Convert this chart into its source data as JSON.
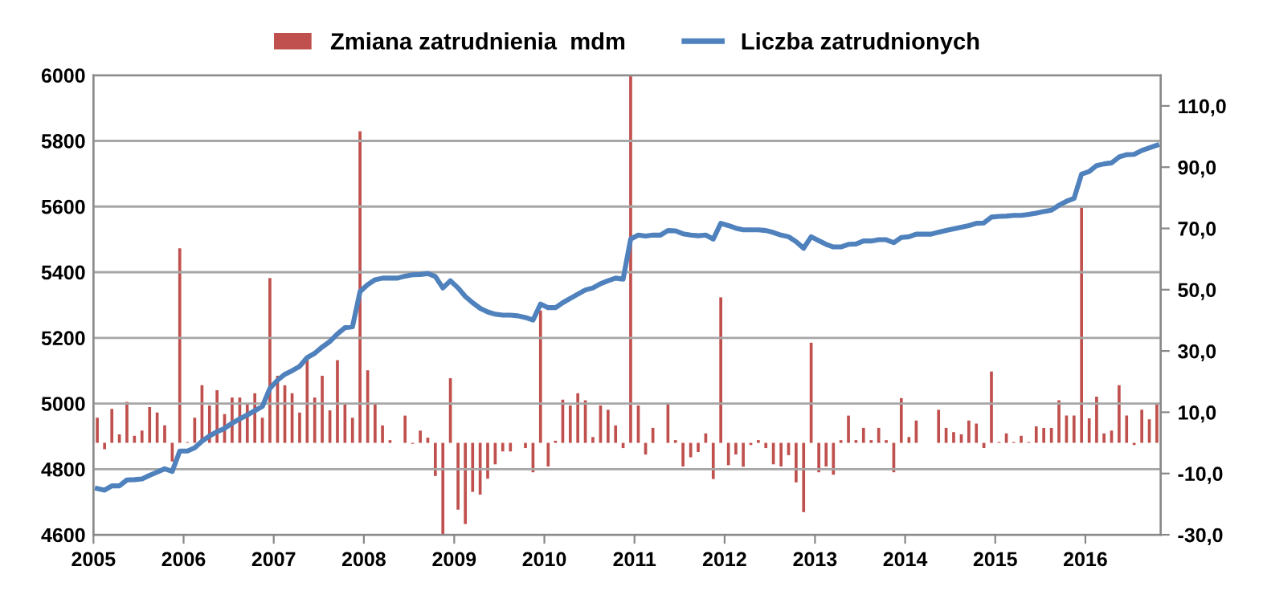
{
  "chart_data": {
    "type": "bar",
    "x": [
      "2005-01",
      "2005-02",
      "2005-03",
      "2005-04",
      "2005-05",
      "2005-06",
      "2005-07",
      "2005-08",
      "2005-09",
      "2005-10",
      "2005-11",
      "2005-12",
      "2006-01",
      "2006-02",
      "2006-03",
      "2006-04",
      "2006-05",
      "2006-06",
      "2006-07",
      "2006-08",
      "2006-09",
      "2006-10",
      "2006-11",
      "2006-12",
      "2007-01",
      "2007-02",
      "2007-03",
      "2007-04",
      "2007-05",
      "2007-06",
      "2007-07",
      "2007-08",
      "2007-09",
      "2007-10",
      "2007-11",
      "2007-12",
      "2008-01",
      "2008-02",
      "2008-03",
      "2008-04",
      "2008-05",
      "2008-06",
      "2008-07",
      "2008-08",
      "2008-09",
      "2008-10",
      "2008-11",
      "2008-12",
      "2009-01",
      "2009-02",
      "2009-03",
      "2009-04",
      "2009-05",
      "2009-06",
      "2009-07",
      "2009-08",
      "2009-09",
      "2009-10",
      "2009-11",
      "2009-12",
      "2010-01",
      "2010-02",
      "2010-03",
      "2010-04",
      "2010-05",
      "2010-06",
      "2010-07",
      "2010-08",
      "2010-09",
      "2010-10",
      "2010-11",
      "2010-12",
      "2011-01",
      "2011-02",
      "2011-03",
      "2011-04",
      "2011-05",
      "2011-06",
      "2011-07",
      "2011-08",
      "2011-09",
      "2011-10",
      "2011-11",
      "2011-12",
      "2012-01",
      "2012-02",
      "2012-03",
      "2012-04",
      "2012-05",
      "2012-06",
      "2012-07",
      "2012-08",
      "2012-09",
      "2012-10",
      "2012-11",
      "2012-12",
      "2013-01",
      "2013-02",
      "2013-03",
      "2013-04",
      "2013-05",
      "2013-06",
      "2013-07",
      "2013-08",
      "2013-09",
      "2013-10",
      "2013-11",
      "2013-12",
      "2014-01",
      "2014-02",
      "2014-03",
      "2014-04",
      "2014-05",
      "2014-06",
      "2014-07",
      "2014-08",
      "2014-09",
      "2014-10",
      "2014-11",
      "2014-12",
      "2015-01",
      "2015-02",
      "2015-03",
      "2015-04",
      "2015-05",
      "2015-06",
      "2015-07",
      "2015-08",
      "2015-09",
      "2015-10",
      "2015-11",
      "2015-12",
      "2016-01",
      "2016-02",
      "2016-03",
      "2016-04",
      "2016-05",
      "2016-06",
      "2016-07",
      "2016-08",
      "2016-09",
      "2016-10"
    ],
    "series": [
      {
        "name": "Zmiana zatrudnienia  mdm",
        "axis": "y2",
        "color": "#c0504d",
        "values": [
          8.2,
          -2.1,
          11.1,
          2.8,
          13.4,
          2.3,
          4.0,
          11.7,
          9.9,
          5.7,
          -6.1,
          63.5,
          0.3,
          8.2,
          18.8,
          12.2,
          17.2,
          9.4,
          14.8,
          14.8,
          12.9,
          16.2,
          8.2,
          53.8,
          21.9,
          18.8,
          16.2,
          9.9,
          27.7,
          14.8,
          21.9,
          10.6,
          27.0,
          12.9,
          8.2,
          101.7,
          23.7,
          12.9,
          5.7,
          0.9,
          0,
          8.9,
          -0.3,
          4.0,
          1.7,
          -10.8,
          -29.9,
          21.1,
          -21.8,
          -26.5,
          -16.0,
          -16.9,
          -11.7,
          -7.0,
          -2.8,
          -2.8,
          0,
          -1.7,
          -9.6,
          43.2,
          -7.7,
          0.7,
          14.1,
          12.2,
          16.2,
          13.9,
          1.9,
          12.2,
          10.8,
          5.7,
          -1.7,
          120,
          12.2,
          -3.8,
          4.9,
          0,
          12.9,
          0.9,
          -7.7,
          -4.7,
          -3.0,
          3.1,
          -11.8,
          47.5,
          -7.3,
          -3.8,
          -7.8,
          -0.7,
          0.9,
          -1.7,
          -7.0,
          -7.7,
          -4.0,
          -12.9,
          -22.6,
          32.7,
          -9.6,
          -7.7,
          -10.4,
          0.9,
          8.9,
          0.9,
          4.9,
          0.9,
          4.9,
          0.9,
          -9.6,
          14.6,
          1.9,
          7.3,
          0,
          0,
          10.8,
          4.9,
          3.5,
          2.8,
          7.3,
          6.3,
          -1.7,
          23.3,
          0.3,
          3.1,
          0.3,
          2.3,
          0.3,
          5.4,
          4.9,
          4.9,
          13.9,
          8.9,
          8.9,
          76.8,
          8.0,
          15.1,
          3.1,
          4.0,
          18.8,
          8.9,
          -0.7,
          10.8,
          7.7,
          12.9
        ]
      },
      {
        "name": "Liczba zatrudnionych",
        "type": "line",
        "color": "#4f81bd",
        "values": [
          4741,
          4736,
          4749,
          4749,
          4767,
          4768,
          4770,
          4781,
          4791,
          4801,
          4793,
          4855,
          4855,
          4865,
          4885,
          4901,
          4914,
          4924,
          4940,
          4953,
          4965,
          4978,
          4991,
          5046,
          5071,
          5089,
          5100,
          5113,
          5140,
          5153,
          5172,
          5189,
          5212,
          5231,
          5234,
          5341,
          5362,
          5377,
          5382,
          5382,
          5382,
          5388,
          5392,
          5393,
          5396,
          5387,
          5352,
          5374,
          5352,
          5326,
          5307,
          5290,
          5279,
          5272,
          5269,
          5269,
          5267,
          5262,
          5254,
          5303,
          5292,
          5292,
          5307,
          5320,
          5333,
          5346,
          5352,
          5365,
          5374,
          5382,
          5379,
          5501,
          5513,
          5510,
          5513,
          5513,
          5527,
          5526,
          5517,
          5513,
          5511,
          5513,
          5501,
          5549,
          5542,
          5534,
          5529,
          5529,
          5529,
          5527,
          5521,
          5513,
          5508,
          5493,
          5473,
          5508,
          5496,
          5485,
          5477,
          5477,
          5485,
          5486,
          5495,
          5495,
          5499,
          5499,
          5490,
          5506,
          5508,
          5516,
          5516,
          5516,
          5522,
          5527,
          5532,
          5537,
          5542,
          5549,
          5550,
          5568,
          5570,
          5571,
          5573,
          5573,
          5576,
          5580,
          5585,
          5589,
          5604,
          5616,
          5625,
          5699,
          5707,
          5725,
          5730,
          5733,
          5751,
          5758,
          5759,
          5771,
          5779,
          5787
        ]
      }
    ],
    "xlim": [
      "2005-01",
      "2016-11"
    ],
    "xticks": [
      "2005",
      "2006",
      "2007",
      "2008",
      "2009",
      "2010",
      "2011",
      "2012",
      "2013",
      "2014",
      "2015",
      "2016"
    ],
    "ylim": [
      4600,
      6000
    ],
    "yticks": [
      4600,
      4800,
      5000,
      5200,
      5400,
      5600,
      5800,
      6000
    ],
    "y2lim": [
      -30,
      120
    ],
    "y2ticks": [
      {
        "value": -30,
        "label": "-30,0"
      },
      {
        "value": -10,
        "label": "-10,0"
      },
      {
        "value": 10,
        "label": "10,0"
      },
      {
        "value": 30,
        "label": "30,0"
      },
      {
        "value": 50,
        "label": "50,0"
      },
      {
        "value": 70,
        "label": "70,0"
      },
      {
        "value": 90,
        "label": "90,0"
      },
      {
        "value": 110,
        "label": "110,0"
      }
    ],
    "grid": "y",
    "legend": "top"
  }
}
